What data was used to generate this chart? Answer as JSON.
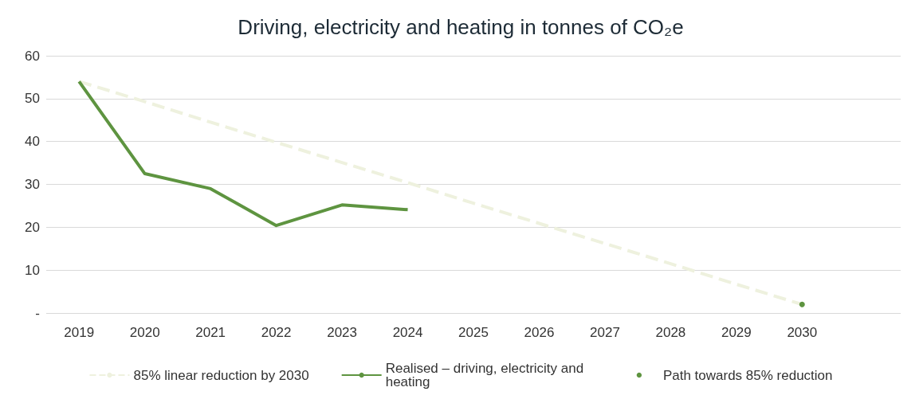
{
  "chart_data": {
    "type": "line",
    "title": "Driving, electricity and heating in tonnes of CO₂e",
    "categories": [
      "2019",
      "2020",
      "2021",
      "2022",
      "2023",
      "2024",
      "2025",
      "2026",
      "2027",
      "2028",
      "2029",
      "2030",
      null
    ],
    "series": [
      {
        "name": "85% linear reduction by 2030",
        "color": "#eef1de",
        "line_style": "dashed",
        "values": [
          54,
          49.3,
          44.5,
          39.8,
          35.1,
          30.4,
          25.6,
          20.9,
          16.2,
          11.5,
          6.7,
          2,
          null
        ]
      },
      {
        "name": "Realised – driving, electricity and heating",
        "color": "#5e9440",
        "line_style": "solid",
        "values": [
          54,
          32.5,
          29,
          20.4,
          25.2,
          24.1,
          null,
          null,
          null,
          null,
          null,
          null,
          null
        ]
      },
      {
        "name": "Path towards 85% reduction",
        "color": "#5e9440",
        "marker": "circle",
        "values": [
          null,
          null,
          null,
          null,
          null,
          null,
          null,
          null,
          null,
          null,
          null,
          2,
          null
        ]
      }
    ],
    "ylim": [
      0,
      60
    ],
    "yticks": [
      {
        "value": 0,
        "label": "-"
      },
      10,
      20,
      30,
      40,
      50,
      60
    ],
    "grid": "y",
    "legend": "bottom",
    "marker": "none"
  }
}
